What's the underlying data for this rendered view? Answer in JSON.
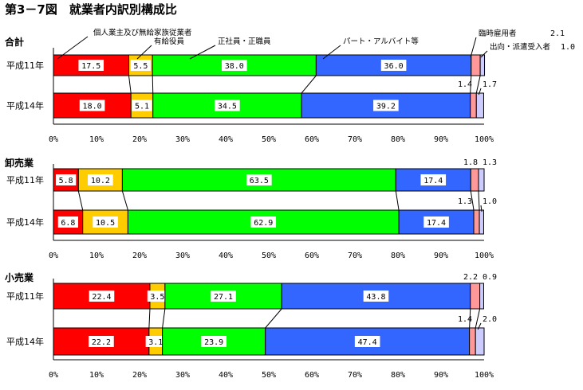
{
  "chart_data": {
    "type": "bar",
    "stacked": true,
    "orientation": "horizontal",
    "title": "第3－7図　就業者内訳別構成比",
    "xlim": [
      0,
      100
    ],
    "x_ticks": [
      "0%",
      "10%",
      "20%",
      "30%",
      "40%",
      "50%",
      "60%",
      "70%",
      "80%",
      "90%",
      "100%"
    ],
    "series": [
      {
        "name": "個人業主及び無給家族従業者",
        "color": "#ff0000"
      },
      {
        "name": "有給役員",
        "color": "#ffcc00"
      },
      {
        "name": "正社員・正職員",
        "color": "#00ff00"
      },
      {
        "name": "パート・アルバイト等",
        "color": "#3366ff"
      },
      {
        "name": "臨時雇用者",
        "color": "#ff9999"
      },
      {
        "name": "出向・派遣受入者",
        "color": "#ccccff"
      }
    ],
    "panels": [
      {
        "name": "合計",
        "rows": [
          {
            "label": "平成11年",
            "values": [
              17.5,
              5.5,
              38.0,
              36.0,
              2.1,
              1.0
            ],
            "labels": [
              "17.5",
              "5.5",
              "38.0",
              "36.0",
              "2.1",
              "1.0"
            ]
          },
          {
            "label": "平成14年",
            "values": [
              18.0,
              5.1,
              34.5,
              39.2,
              1.4,
              1.7
            ],
            "labels": [
              "18.0",
              "5.1",
              "34.5",
              "39.2",
              "1.4",
              "1.7"
            ]
          }
        ]
      },
      {
        "name": "卸売業",
        "rows": [
          {
            "label": "平成11年",
            "values": [
              5.8,
              10.2,
              63.5,
              17.4,
              1.8,
              1.3
            ],
            "labels": [
              "5.8",
              "10.2",
              "63.5",
              "17.4",
              "1.8",
              "1.3"
            ]
          },
          {
            "label": "平成14年",
            "values": [
              6.8,
              10.5,
              62.9,
              17.4,
              1.3,
              1.0
            ],
            "labels": [
              "6.8",
              "10.5",
              "62.9",
              "17.4",
              "1.3",
              "1.0"
            ]
          }
        ]
      },
      {
        "name": "小売業",
        "rows": [
          {
            "label": "平成11年",
            "values": [
              22.4,
              3.5,
              27.1,
              43.8,
              2.2,
              0.9
            ],
            "labels": [
              "22.4",
              "3.5",
              "27.1",
              "43.8",
              "2.2",
              "0.9"
            ]
          },
          {
            "label": "平成14年",
            "values": [
              22.2,
              3.1,
              23.9,
              47.4,
              1.4,
              2.0
            ],
            "labels": [
              "22.2",
              "3.1",
              "23.9",
              "47.4",
              "1.4",
              "2.0"
            ]
          }
        ]
      }
    ],
    "annotations": [
      {
        "text": "個人業主及び無給家族従業者"
      },
      {
        "text": "有給役員"
      },
      {
        "text": "正社員・正職員"
      },
      {
        "text": "パート・アルバイト等"
      },
      {
        "text": "臨時雇用者"
      },
      {
        "text": "出向・派遣受入者"
      }
    ]
  }
}
